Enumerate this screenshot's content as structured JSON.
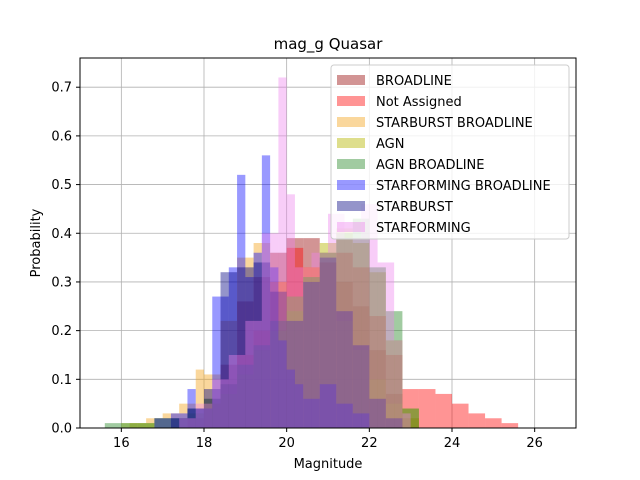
{
  "chart_data": {
    "type": "bar",
    "title": "mag_g Quasar",
    "xlabel": "Magnitude",
    "ylabel": "Probability",
    "xlim": [
      15.0,
      27.0
    ],
    "ylim": [
      0.0,
      0.76
    ],
    "xticks": [
      16,
      18,
      20,
      22,
      24,
      26
    ],
    "yticks": [
      0.0,
      0.1,
      0.2,
      0.3,
      0.4,
      0.5,
      0.6,
      0.7
    ],
    "grid": true,
    "legend_position": "top-right",
    "series": [
      {
        "name": "BROADLINE",
        "color": "#a52a2a",
        "opacity": 0.5,
        "bins": [
          [
            17.6,
            18.0,
            0.02
          ],
          [
            18.0,
            18.4,
            0.06
          ],
          [
            18.4,
            18.8,
            0.13
          ],
          [
            18.8,
            19.2,
            0.26
          ],
          [
            19.2,
            19.6,
            0.31
          ],
          [
            19.6,
            20.0,
            0.36
          ],
          [
            20.0,
            20.4,
            0.39
          ],
          [
            20.4,
            20.8,
            0.39
          ],
          [
            20.8,
            21.2,
            0.34
          ],
          [
            21.2,
            21.6,
            0.3
          ],
          [
            21.6,
            22.0,
            0.25
          ],
          [
            22.0,
            22.4,
            0.16
          ],
          [
            22.4,
            22.8,
            0.07
          ],
          [
            22.8,
            23.2,
            0.02
          ]
        ]
      },
      {
        "name": "Not Assigned",
        "color": "#ff0000",
        "opacity": 0.42,
        "bins": [
          [
            18.0,
            18.4,
            0.05
          ],
          [
            18.4,
            18.8,
            0.09
          ],
          [
            18.8,
            19.2,
            0.15
          ],
          [
            19.2,
            19.6,
            0.2
          ],
          [
            19.6,
            20.0,
            0.3
          ],
          [
            20.0,
            20.4,
            0.37
          ],
          [
            20.4,
            20.8,
            0.33
          ],
          [
            20.8,
            21.2,
            0.34
          ],
          [
            21.2,
            21.6,
            0.36
          ],
          [
            21.6,
            22.0,
            0.33
          ],
          [
            22.0,
            22.4,
            0.23
          ],
          [
            22.4,
            22.8,
            0.15
          ],
          [
            22.8,
            23.2,
            0.08
          ],
          [
            23.2,
            23.6,
            0.08
          ],
          [
            23.6,
            24.0,
            0.07
          ],
          [
            24.0,
            24.4,
            0.05
          ],
          [
            24.4,
            24.8,
            0.03
          ],
          [
            24.8,
            25.2,
            0.02
          ],
          [
            25.2,
            25.6,
            0.01
          ]
        ]
      },
      {
        "name": "STARBURST BROADLINE",
        "color": "#f5a623",
        "opacity": 0.45,
        "bins": [
          [
            16.2,
            16.6,
            0.01
          ],
          [
            16.6,
            17.0,
            0.02
          ],
          [
            17.0,
            17.4,
            0.03
          ],
          [
            17.4,
            17.8,
            0.05
          ],
          [
            17.8,
            18.0,
            0.12
          ],
          [
            18.0,
            18.4,
            0.11
          ],
          [
            18.4,
            18.8,
            0.22
          ],
          [
            18.8,
            19.2,
            0.35
          ],
          [
            19.2,
            19.6,
            0.38
          ],
          [
            19.6,
            20.0,
            0.3
          ],
          [
            20.0,
            20.4,
            0.27
          ],
          [
            20.4,
            20.8,
            0.33
          ],
          [
            20.8,
            21.2,
            0.36
          ],
          [
            21.2,
            21.6,
            0.22
          ],
          [
            21.6,
            22.0,
            0.16
          ],
          [
            22.0,
            22.4,
            0.1
          ],
          [
            22.4,
            22.8,
            0.05
          ],
          [
            22.8,
            23.2,
            0.02
          ]
        ]
      },
      {
        "name": "AGN",
        "color": "#b5b500",
        "opacity": 0.45,
        "bins": [
          [
            16.0,
            16.4,
            0.01
          ],
          [
            16.4,
            16.8,
            0.01
          ],
          [
            16.8,
            17.2,
            0.02
          ],
          [
            17.2,
            17.6,
            0.02
          ],
          [
            17.6,
            18.0,
            0.03
          ],
          [
            18.0,
            18.4,
            0.05
          ],
          [
            18.4,
            18.8,
            0.07
          ],
          [
            18.8,
            19.2,
            0.11
          ],
          [
            19.2,
            19.6,
            0.16
          ],
          [
            19.6,
            20.0,
            0.2
          ],
          [
            20.0,
            20.4,
            0.24
          ],
          [
            20.4,
            20.8,
            0.31
          ],
          [
            20.8,
            21.2,
            0.38
          ],
          [
            21.2,
            21.6,
            0.41
          ],
          [
            21.6,
            22.0,
            0.38
          ],
          [
            22.0,
            22.4,
            0.32
          ],
          [
            22.4,
            22.8,
            0.18
          ],
          [
            22.8,
            23.2,
            0.04
          ]
        ]
      },
      {
        "name": "AGN BROADLINE",
        "color": "#2e8b2e",
        "opacity": 0.45,
        "bins": [
          [
            15.6,
            16.0,
            0.01
          ],
          [
            16.0,
            16.4,
            0.01
          ],
          [
            16.4,
            16.8,
            0.01
          ],
          [
            16.8,
            17.2,
            0.02
          ],
          [
            17.2,
            17.6,
            0.02
          ],
          [
            17.6,
            18.0,
            0.04
          ],
          [
            18.0,
            18.4,
            0.06
          ],
          [
            18.4,
            18.8,
            0.09
          ],
          [
            18.8,
            19.2,
            0.13
          ],
          [
            19.2,
            19.6,
            0.17
          ],
          [
            19.6,
            20.0,
            0.22
          ],
          [
            20.0,
            20.4,
            0.27
          ],
          [
            20.4,
            20.8,
            0.31
          ],
          [
            20.8,
            21.2,
            0.36
          ],
          [
            21.2,
            21.6,
            0.4
          ],
          [
            21.6,
            22.0,
            0.43
          ],
          [
            22.0,
            22.4,
            0.33
          ],
          [
            22.4,
            22.8,
            0.24
          ],
          [
            22.8,
            23.2,
            0.04
          ]
        ]
      },
      {
        "name": "STARFORMING BROADLINE",
        "color": "#0000ff",
        "opacity": 0.4,
        "bins": [
          [
            16.8,
            17.2,
            0.02
          ],
          [
            17.2,
            17.6,
            0.03
          ],
          [
            17.6,
            17.8,
            0.08
          ],
          [
            17.8,
            18.2,
            0.04
          ],
          [
            18.2,
            18.6,
            0.27
          ],
          [
            18.6,
            18.8,
            0.33
          ],
          [
            18.8,
            19.0,
            0.52
          ],
          [
            19.0,
            19.2,
            0.31
          ],
          [
            19.2,
            19.4,
            0.36
          ],
          [
            19.4,
            19.6,
            0.56
          ],
          [
            19.6,
            19.8,
            0.33
          ],
          [
            19.8,
            20.0,
            0.18
          ],
          [
            20.0,
            20.2,
            0.12
          ],
          [
            20.2,
            20.4,
            0.09
          ],
          [
            20.4,
            20.8,
            0.06
          ],
          [
            20.8,
            21.2,
            0.09
          ],
          [
            21.2,
            21.6,
            0.05
          ],
          [
            21.6,
            22.0,
            0.03
          ]
        ]
      },
      {
        "name": "STARBURST",
        "color": "#000080",
        "opacity": 0.42,
        "bins": [
          [
            17.2,
            17.6,
            0.02
          ],
          [
            17.6,
            18.0,
            0.04
          ],
          [
            18.0,
            18.4,
            0.08
          ],
          [
            18.4,
            18.8,
            0.32
          ],
          [
            18.8,
            19.2,
            0.33
          ],
          [
            19.2,
            19.6,
            0.34
          ],
          [
            19.6,
            20.0,
            0.28
          ],
          [
            20.0,
            20.4,
            0.22
          ],
          [
            20.4,
            20.8,
            0.3
          ],
          [
            20.8,
            21.2,
            0.35
          ],
          [
            21.2,
            21.6,
            0.24
          ],
          [
            21.6,
            22.0,
            0.17
          ],
          [
            22.0,
            22.4,
            0.06
          ],
          [
            22.4,
            22.8,
            0.02
          ]
        ]
      },
      {
        "name": "STARFORMING",
        "color": "#ee82ee",
        "opacity": 0.4,
        "bins": [
          [
            17.4,
            17.8,
            0.02
          ],
          [
            17.8,
            18.2,
            0.05
          ],
          [
            18.2,
            18.6,
            0.1
          ],
          [
            18.6,
            19.0,
            0.15
          ],
          [
            19.0,
            19.4,
            0.22
          ],
          [
            19.4,
            19.8,
            0.4
          ],
          [
            19.8,
            20.0,
            0.72
          ],
          [
            20.0,
            20.2,
            0.48
          ],
          [
            20.2,
            20.6,
            0.33
          ],
          [
            20.6,
            21.0,
            0.36
          ],
          [
            21.0,
            21.4,
            0.44
          ],
          [
            21.4,
            21.8,
            0.39
          ],
          [
            21.8,
            22.2,
            0.46
          ],
          [
            22.2,
            22.6,
            0.34
          ],
          [
            22.6,
            22.8,
            0.18
          ],
          [
            22.8,
            23.0,
            0.03
          ]
        ]
      }
    ]
  }
}
